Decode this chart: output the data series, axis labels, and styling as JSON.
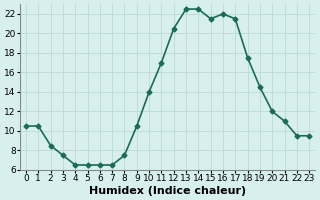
{
  "x": [
    0,
    1,
    2,
    3,
    4,
    5,
    6,
    7,
    8,
    9,
    10,
    11,
    12,
    13,
    14,
    15,
    16,
    17,
    18,
    19,
    20,
    21,
    22,
    23
  ],
  "y": [
    10.5,
    10.5,
    8.5,
    7.5,
    6.5,
    6.5,
    6.5,
    6.5,
    7.5,
    10.5,
    14.0,
    17.0,
    20.5,
    22.5,
    22.5,
    21.5,
    22.0,
    21.5,
    17.5,
    14.5,
    12.0,
    11.0,
    9.5,
    9.5
  ],
  "line_color": "#1a6b5a",
  "marker": "D",
  "markersize": 2.5,
  "bg_color": "#d7f0ee",
  "grid_color": "#c0dbd8",
  "xlabel": "Humidex (Indice chaleur)",
  "xlim": [
    -0.5,
    23.5
  ],
  "ylim": [
    6,
    23
  ],
  "yticks": [
    6,
    8,
    10,
    12,
    14,
    16,
    18,
    20,
    22
  ],
  "xticks": [
    0,
    1,
    2,
    3,
    4,
    5,
    6,
    7,
    8,
    9,
    10,
    11,
    12,
    13,
    14,
    15,
    16,
    17,
    18,
    19,
    20,
    21,
    22,
    23
  ],
  "linewidth": 1.2,
  "xlabel_fontsize": 8,
  "tick_fontsize": 6.5
}
